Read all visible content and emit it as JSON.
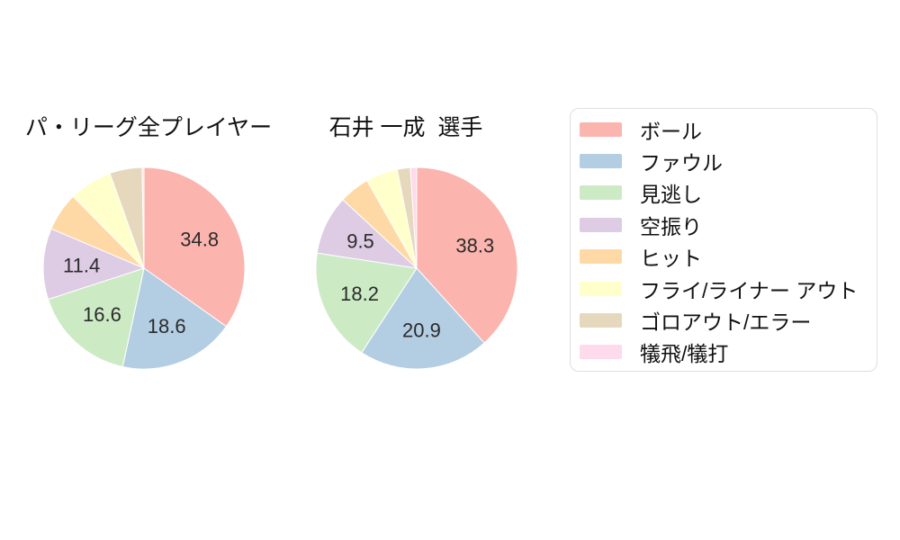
{
  "figure": {
    "background_color": "#ffffff",
    "text_color": "#111111",
    "label_color": "#2b2b2b",
    "legend_border_color": "#dfdfdf"
  },
  "legend": {
    "position": "right",
    "items": [
      {
        "label": "ボール",
        "color": "#FBB4AE"
      },
      {
        "label": "ファウル",
        "color": "#B3CDE3"
      },
      {
        "label": "見逃し",
        "color": "#CCEBC5"
      },
      {
        "label": "空振り",
        "color": "#DECBE4"
      },
      {
        "label": "ヒット",
        "color": "#FED9A6"
      },
      {
        "label": "フライ/ライナー アウト",
        "color": "#FFFFCC"
      },
      {
        "label": "ゴロアウト/エラー",
        "color": "#E5D8BD"
      },
      {
        "label": "犠飛/犠打",
        "color": "#FDDAEC"
      }
    ]
  },
  "chart_data": [
    {
      "type": "pie",
      "title": "パ・リーグ全プレイヤー",
      "unit": "percent",
      "start_angle_deg": 0,
      "direction": "clockwise",
      "labels_shown_for": [
        "ボール",
        "ファウル",
        "見逃し",
        "空振り"
      ],
      "slices": [
        {
          "label": "ボール",
          "value": 34.8,
          "color": "#FBB4AE",
          "show_label": true
        },
        {
          "label": "ファウル",
          "value": 18.6,
          "color": "#B3CDE3",
          "show_label": true
        },
        {
          "label": "見逃し",
          "value": 16.6,
          "color": "#CCEBC5",
          "show_label": true
        },
        {
          "label": "空振り",
          "value": 11.4,
          "color": "#DECBE4",
          "show_label": true
        },
        {
          "label": "ヒット",
          "value": 6.2,
          "color": "#FED9A6",
          "show_label": false
        },
        {
          "label": "フライ/ライナー アウト",
          "value": 6.9,
          "color": "#FFFFCC",
          "show_label": false
        },
        {
          "label": "ゴロアウト/エラー",
          "value": 5.2,
          "color": "#E5D8BD",
          "show_label": false
        },
        {
          "label": "犠飛/犠打",
          "value": 0.3,
          "color": "#FDDAEC",
          "show_label": false
        }
      ]
    },
    {
      "type": "pie",
      "title": "石井 一成  選手",
      "unit": "percent",
      "start_angle_deg": 0,
      "direction": "clockwise",
      "labels_shown_for": [
        "ボール",
        "ファウル",
        "見逃し",
        "空振り"
      ],
      "slices": [
        {
          "label": "ボール",
          "value": 38.3,
          "color": "#FBB4AE",
          "show_label": true
        },
        {
          "label": "ファウル",
          "value": 20.9,
          "color": "#B3CDE3",
          "show_label": true
        },
        {
          "label": "見逃し",
          "value": 18.2,
          "color": "#CCEBC5",
          "show_label": true
        },
        {
          "label": "空振り",
          "value": 9.5,
          "color": "#DECBE4",
          "show_label": true
        },
        {
          "label": "ヒット",
          "value": 4.9,
          "color": "#FED9A6",
          "show_label": false
        },
        {
          "label": "フライ/ライナー アウト",
          "value": 5.1,
          "color": "#FFFFCC",
          "show_label": false
        },
        {
          "label": "ゴロアウト/エラー",
          "value": 2.1,
          "color": "#E5D8BD",
          "show_label": false
        },
        {
          "label": "犠飛/犠打",
          "value": 1.0,
          "color": "#FDDAEC",
          "show_label": false
        }
      ]
    }
  ]
}
